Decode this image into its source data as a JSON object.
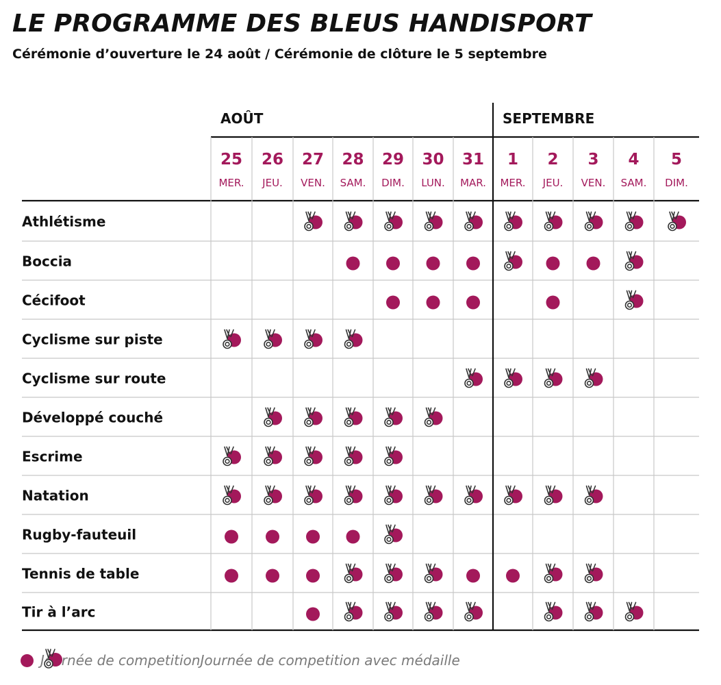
{
  "title": "LE PROGRAMME DES BLEUS HANDISPORT",
  "subtitle": "Cérémonie d’ouverture le 24 août / Cérémonie de clôture le 5 septembre",
  "colors": {
    "accent": "#a3195b",
    "grid": "#c8c8c8",
    "text": "#111111"
  },
  "legend": {
    "competition": "Journée de competition",
    "medal": "Journée de competition avec médaille"
  },
  "chart_data": {
    "type": "table",
    "months": [
      {
        "label": "AOÛT",
        "first_day_index": 0
      },
      {
        "label": "SEPTEMBRE",
        "first_day_index": 7
      }
    ],
    "days": [
      {
        "num": "25",
        "dow": "MER."
      },
      {
        "num": "26",
        "dow": "JEU."
      },
      {
        "num": "27",
        "dow": "VEN."
      },
      {
        "num": "28",
        "dow": "SAM."
      },
      {
        "num": "29",
        "dow": "DIM."
      },
      {
        "num": "30",
        "dow": "LUN."
      },
      {
        "num": "31",
        "dow": "MAR."
      },
      {
        "num": "1",
        "dow": "MER."
      },
      {
        "num": "2",
        "dow": "JEU."
      },
      {
        "num": "3",
        "dow": "VEN."
      },
      {
        "num": "4",
        "dow": "SAM."
      },
      {
        "num": "5",
        "dow": "DIM."
      }
    ],
    "legend_codes": {
      "0": "none",
      "1": "Journée de competition",
      "2": "Journée de competition avec médaille"
    },
    "sports": [
      {
        "name": "Athlétisme",
        "schedule": [
          0,
          0,
          2,
          2,
          2,
          2,
          2,
          2,
          2,
          2,
          2,
          2
        ]
      },
      {
        "name": "Boccia",
        "schedule": [
          0,
          0,
          0,
          1,
          1,
          1,
          1,
          2,
          1,
          1,
          2,
          0
        ]
      },
      {
        "name": "Cécifoot",
        "schedule": [
          0,
          0,
          0,
          0,
          1,
          1,
          1,
          0,
          1,
          0,
          2,
          0
        ]
      },
      {
        "name": "Cyclisme sur piste",
        "schedule": [
          2,
          2,
          2,
          2,
          0,
          0,
          0,
          0,
          0,
          0,
          0,
          0
        ]
      },
      {
        "name": "Cyclisme sur route",
        "schedule": [
          0,
          0,
          0,
          0,
          0,
          0,
          2,
          2,
          2,
          2,
          0,
          0
        ]
      },
      {
        "name": "Développé couché",
        "schedule": [
          0,
          2,
          2,
          2,
          2,
          2,
          0,
          0,
          0,
          0,
          0,
          0
        ]
      },
      {
        "name": "Escrime",
        "schedule": [
          2,
          2,
          2,
          2,
          2,
          0,
          0,
          0,
          0,
          0,
          0,
          0
        ]
      },
      {
        "name": "Natation",
        "schedule": [
          2,
          2,
          2,
          2,
          2,
          2,
          2,
          2,
          2,
          2,
          0,
          0
        ]
      },
      {
        "name": "Rugby-fauteuil",
        "schedule": [
          1,
          1,
          1,
          1,
          2,
          0,
          0,
          0,
          0,
          0,
          0,
          0
        ]
      },
      {
        "name": "Tennis de table",
        "schedule": [
          1,
          1,
          1,
          2,
          2,
          2,
          1,
          1,
          2,
          2,
          0,
          0
        ]
      },
      {
        "name": "Tir à l’arc",
        "schedule": [
          0,
          0,
          1,
          2,
          2,
          2,
          2,
          0,
          2,
          2,
          2,
          0
        ]
      }
    ]
  }
}
